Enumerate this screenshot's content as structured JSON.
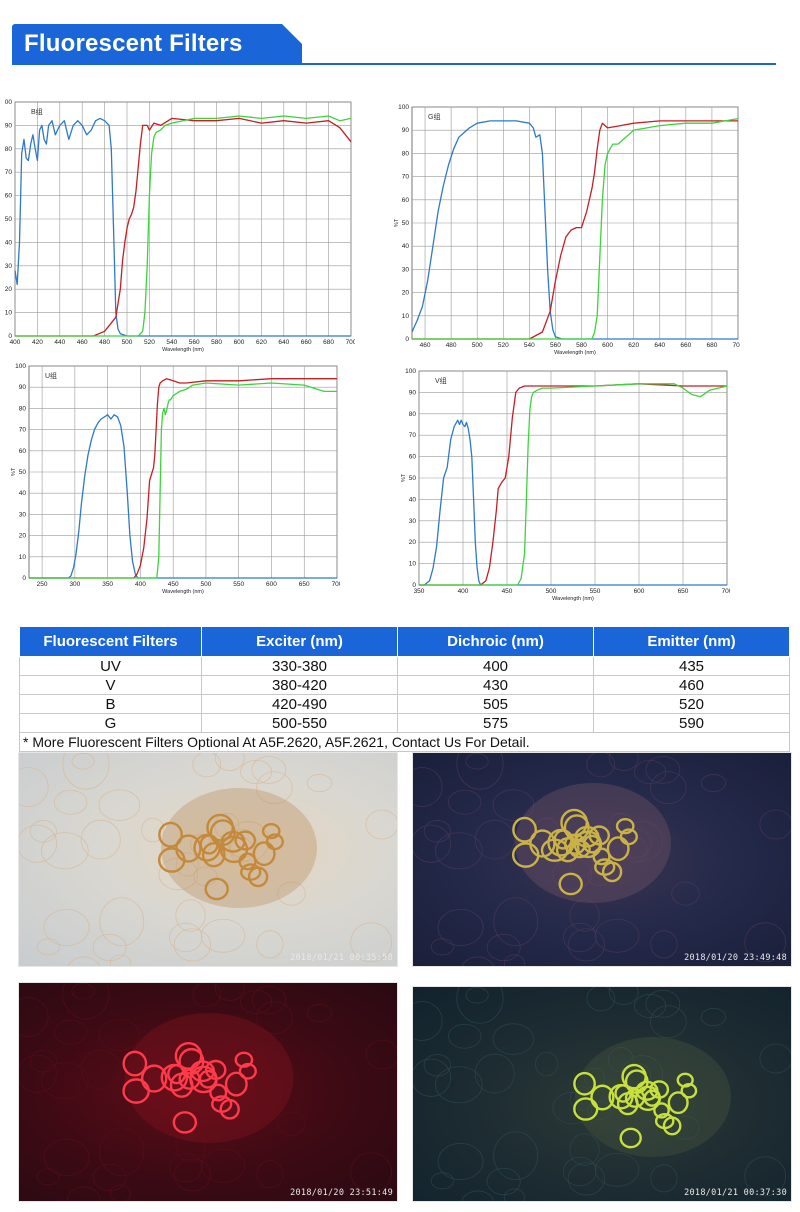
{
  "header": {
    "title": "Fluorescent Filters",
    "color": "#1a66d9"
  },
  "chart_data": [
    {
      "type": "line",
      "id": "chart-b",
      "title": "B组",
      "xlabel": "Wavelength (nm)",
      "ylabel": "",
      "xlim": [
        400,
        700
      ],
      "ylim": [
        0,
        100
      ],
      "xticks": [
        400,
        420,
        440,
        460,
        480,
        500,
        520,
        540,
        560,
        580,
        600,
        620,
        640,
        660,
        680,
        700
      ],
      "yticks": [
        0,
        10,
        20,
        30,
        40,
        50,
        60,
        70,
        80,
        90,
        100
      ],
      "series": [
        {
          "color": "#2f79c9",
          "x": [
            400,
            402,
            404,
            406,
            408,
            410,
            412,
            414,
            416,
            418,
            420,
            422,
            424,
            426,
            428,
            430,
            433,
            436,
            440,
            444,
            448,
            452,
            456,
            460,
            464,
            468,
            472,
            476,
            480,
            484,
            486,
            488,
            490,
            492,
            494,
            500,
            520,
            540,
            700
          ],
          "y": [
            28,
            22,
            40,
            78,
            84,
            76,
            75,
            82,
            86,
            80,
            75,
            88,
            90,
            84,
            82,
            90,
            92,
            86,
            90,
            92,
            84,
            90,
            92,
            90,
            86,
            88,
            92,
            93,
            92,
            90,
            80,
            45,
            10,
            3,
            1,
            0,
            0,
            0,
            0
          ]
        },
        {
          "color": "#c81e23",
          "x": [
            400,
            470,
            480,
            490,
            494,
            496,
            498,
            500,
            502,
            504,
            506,
            508,
            510,
            512,
            514,
            518,
            520,
            524,
            530,
            540,
            560,
            580,
            600,
            620,
            640,
            660,
            680,
            690,
            700
          ],
          "y": [
            0,
            0,
            2,
            8,
            20,
            32,
            40,
            46,
            50,
            52,
            55,
            62,
            72,
            82,
            90,
            90,
            88,
            91,
            90,
            93,
            92,
            92,
            93,
            91,
            92,
            91,
            92,
            89,
            83
          ]
        },
        {
          "color": "#3cd43c",
          "x": [
            400,
            510,
            514,
            516,
            518,
            520,
            522,
            524,
            526,
            530,
            534,
            540,
            550,
            560,
            580,
            600,
            620,
            640,
            660,
            680,
            690,
            700
          ],
          "y": [
            0,
            0,
            2,
            10,
            30,
            60,
            78,
            85,
            87,
            88,
            90,
            91,
            92,
            93,
            93,
            94,
            93,
            94,
            93,
            94,
            92,
            93
          ]
        }
      ]
    },
    {
      "type": "line",
      "id": "chart-g",
      "title": "G组",
      "xlabel": "Wavelength (nm)",
      "ylabel": "%T",
      "xlim": [
        450,
        700
      ],
      "ylim": [
        0,
        100
      ],
      "xticks": [
        460,
        480,
        500,
        520,
        540,
        560,
        580,
        600,
        620,
        640,
        660,
        680,
        700
      ],
      "yticks": [
        0,
        10,
        20,
        30,
        40,
        50,
        60,
        70,
        80,
        90,
        100
      ],
      "series": [
        {
          "color": "#2f79c9",
          "x": [
            450,
            454,
            458,
            462,
            466,
            470,
            474,
            478,
            482,
            486,
            490,
            494,
            500,
            510,
            520,
            530,
            540,
            543,
            545,
            548,
            550,
            552,
            554,
            556,
            558,
            560,
            565,
            700
          ],
          "y": [
            3,
            8,
            14,
            25,
            40,
            55,
            66,
            75,
            82,
            87,
            89,
            91,
            93,
            94,
            94,
            94,
            93,
            91,
            87,
            88,
            80,
            55,
            30,
            12,
            4,
            1,
            0,
            0
          ]
        },
        {
          "color": "#c81e23",
          "x": [
            450,
            540,
            550,
            556,
            560,
            564,
            568,
            572,
            576,
            580,
            584,
            588,
            590,
            592,
            594,
            596,
            598,
            600,
            610,
            620,
            640,
            660,
            680,
            700
          ],
          "y": [
            0,
            0,
            3,
            12,
            25,
            36,
            44,
            47,
            48,
            48,
            55,
            65,
            72,
            82,
            90,
            93,
            92,
            91,
            92,
            93,
            94,
            94,
            94,
            94
          ]
        },
        {
          "color": "#3cd43c",
          "x": [
            450,
            588,
            590,
            592,
            594,
            596,
            598,
            600,
            604,
            608,
            612,
            620,
            640,
            660,
            680,
            700
          ],
          "y": [
            0,
            0,
            3,
            10,
            35,
            60,
            75,
            80,
            84,
            84,
            86,
            90,
            92,
            93,
            93,
            95
          ]
        }
      ]
    },
    {
      "type": "line",
      "id": "chart-u",
      "title": "U组",
      "xlabel": "Wavelength (nm)",
      "ylabel": "%T",
      "xlim": [
        230,
        700
      ],
      "ylim": [
        0,
        100
      ],
      "xticks": [
        250,
        300,
        350,
        400,
        450,
        500,
        550,
        600,
        650,
        700
      ],
      "yticks": [
        0,
        10,
        20,
        30,
        40,
        50,
        60,
        70,
        80,
        90,
        100
      ],
      "series": [
        {
          "color": "#2f79c9",
          "x": [
            230,
            290,
            294,
            298,
            302,
            306,
            310,
            315,
            320,
            325,
            330,
            335,
            340,
            345,
            350,
            355,
            360,
            365,
            370,
            375,
            380,
            384,
            388,
            392,
            396,
            400,
            700
          ],
          "y": [
            0,
            0,
            1,
            5,
            12,
            22,
            35,
            48,
            58,
            65,
            70,
            73,
            75,
            76,
            77,
            75,
            77,
            76,
            72,
            62,
            40,
            20,
            8,
            2,
            0,
            0,
            0
          ]
        },
        {
          "color": "#c81e23",
          "x": [
            230,
            390,
            395,
            400,
            405,
            410,
            414,
            418,
            420,
            422,
            424,
            426,
            428,
            430,
            434,
            440,
            450,
            460,
            470,
            500,
            550,
            600,
            650,
            700
          ],
          "y": [
            0,
            0,
            2,
            6,
            14,
            28,
            46,
            50,
            52,
            58,
            70,
            82,
            90,
            92,
            93,
            94,
            93,
            92,
            92,
            93,
            93,
            94,
            94,
            94
          ]
        },
        {
          "color": "#3cd43c",
          "x": [
            230,
            425,
            428,
            430,
            432,
            434,
            436,
            438,
            440,
            442,
            444,
            446,
            450,
            460,
            470,
            480,
            500,
            550,
            600,
            650,
            680,
            700
          ],
          "y": [
            0,
            0,
            10,
            40,
            70,
            78,
            80,
            77,
            79,
            82,
            84,
            84,
            86,
            88,
            89,
            91,
            92,
            91,
            92,
            91,
            88,
            88
          ]
        }
      ]
    },
    {
      "type": "line",
      "id": "chart-v",
      "title": "V组",
      "xlabel": "Wavelength (nm)",
      "ylabel": "%T",
      "xlim": [
        350,
        700
      ],
      "ylim": [
        0,
        100
      ],
      "xticks": [
        350,
        400,
        450,
        500,
        550,
        600,
        650,
        700
      ],
      "yticks": [
        0,
        10,
        20,
        30,
        40,
        50,
        60,
        70,
        80,
        90,
        100
      ],
      "series": [
        {
          "color": "#2f79c9",
          "x": [
            350,
            356,
            362,
            366,
            370,
            374,
            378,
            382,
            386,
            390,
            394,
            396,
            398,
            400,
            402,
            404,
            406,
            408,
            410,
            412,
            414,
            416,
            418,
            420,
            424,
            700
          ],
          "y": [
            0,
            0,
            2,
            8,
            18,
            35,
            50,
            55,
            68,
            74,
            77,
            75,
            77,
            75,
            74,
            76,
            73,
            68,
            60,
            40,
            20,
            8,
            2,
            0,
            0,
            0
          ]
        },
        {
          "color": "#c81e23",
          "x": [
            350,
            420,
            426,
            430,
            434,
            438,
            440,
            444,
            448,
            452,
            456,
            460,
            464,
            470,
            480,
            500,
            550,
            600,
            650,
            700
          ],
          "y": [
            0,
            0,
            2,
            8,
            20,
            35,
            45,
            48,
            50,
            60,
            78,
            90,
            92,
            93,
            93,
            93,
            93,
            94,
            93,
            93
          ]
        },
        {
          "color": "#3cd43c",
          "x": [
            350,
            462,
            466,
            470,
            472,
            474,
            476,
            478,
            480,
            484,
            490,
            500,
            550,
            600,
            640,
            650,
            660,
            670,
            680,
            690,
            700
          ],
          "y": [
            0,
            0,
            3,
            15,
            40,
            65,
            82,
            88,
            90,
            91,
            92,
            92,
            93,
            94,
            94,
            92,
            89,
            88,
            91,
            92,
            93
          ]
        }
      ]
    }
  ],
  "table": {
    "headers": [
      "Fluorescent Filters",
      "Exciter (nm)",
      "Dichroic (nm)",
      "Emitter (nm)"
    ],
    "rows": [
      [
        "UV",
        "330-380",
        "400",
        "435"
      ],
      [
        "V",
        "380-420",
        "430",
        "460"
      ],
      [
        "B",
        "420-490",
        "505",
        "520"
      ],
      [
        "G",
        "500-550",
        "575",
        "590"
      ]
    ],
    "note": "* More Fluorescent Filters Optional At A5F.2620, A5F.2621, Contact Us For Detail."
  },
  "micrographs": {
    "brightfield": {
      "timestamp": "2018/01/21 00:35:58"
    },
    "uv": {
      "timestamp": "2018/01/20 23:49:48"
    },
    "green": {
      "timestamp": "2018/01/20 23:51:49"
    },
    "blue": {
      "timestamp": "2018/01/21 00:37:30"
    }
  }
}
